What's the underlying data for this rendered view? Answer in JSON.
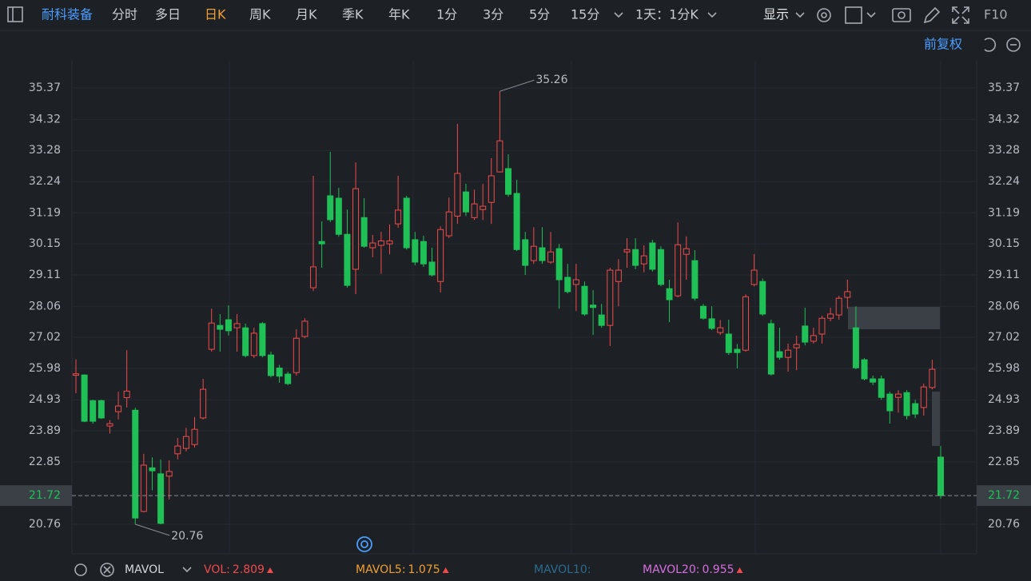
{
  "toolbar": {
    "stock_name": "耐科装备",
    "periods": [
      "分时",
      "多日",
      "日K",
      "周K",
      "月K",
      "季K",
      "年K",
      "1分",
      "3分",
      "5分",
      "15分"
    ],
    "active_period": 2,
    "interval": "1天：1分K",
    "display": "显示",
    "f10": "F10"
  },
  "adjust_label": "前复权",
  "chart_data": {
    "type": "candlestick",
    "open": [
      25.75,
      25.76,
      24.9,
      24.9,
      24.05,
      24.53,
      25.0,
      24.58,
      21.19,
      22.65,
      22.45,
      22.37,
      23.12,
      23.3,
      23.43,
      24.32,
      26.62,
      27.42,
      27.61,
      27.34,
      27.34,
      26.41,
      27.48,
      26.43,
      25.99,
      25.79,
      25.84,
      27.05,
      28.68,
      30.23,
      31.76,
      31.68,
      30.47,
      29.3,
      31.03,
      30.02,
      30.1,
      30.15,
      30.82,
      31.68,
      30.29,
      30.23,
      29.54,
      28.89,
      30.42,
      31.08,
      31.89,
      31.03,
      31.3,
      31.54,
      32.56,
      32.67,
      31.84,
      30.29,
      29.59,
      30.02,
      29.54,
      29.99,
      29.03,
      28.79,
      28.73,
      28.1,
      27.77,
      27.42,
      28.89,
      29.88,
      29.96,
      29.48,
      30.18,
      29.96,
      28.65,
      28.41,
      29.8,
      29.59,
      28.06,
      27.64,
      27.18,
      27.13,
      26.62,
      26.59,
      28.79,
      28.89,
      27.48,
      26.54,
      26.35,
      26.67,
      27.4,
      26.89,
      27.13,
      27.66,
      27.77,
      28.36,
      27.34,
      26.27,
      25.63,
      25.63,
      25.12,
      25.01,
      25.17,
      24.8,
      24.67,
      25.34,
      23.01
    ],
    "high": [
      26.28,
      25.78,
      24.93,
      24.93,
      24.25,
      25.2,
      26.59,
      24.66,
      23.12,
      23.0,
      22.93,
      22.9,
      23.65,
      23.99,
      24.35,
      25.63,
      27.98,
      27.8,
      28.09,
      27.8,
      27.48,
      27.34,
      27.53,
      26.54,
      26.1,
      25.87,
      27.29,
      27.66,
      32.43,
      30.9,
      33.23,
      32.03,
      31.3,
      32.88,
      31.68,
      30.45,
      30.55,
      30.8,
      32.43,
      31.76,
      30.55,
      30.42,
      30.02,
      30.74,
      31.7,
      34.17,
      32.16,
      31.97,
      32.16,
      33.02,
      35.26,
      33.15,
      32.3,
      30.55,
      30.71,
      30.71,
      30.55,
      30.15,
      29.48,
      29.48,
      28.89,
      28.6,
      28.14,
      29.35,
      29.64,
      30.34,
      30.34,
      30.1,
      30.29,
      30.07,
      28.95,
      30.87,
      30.4,
      29.94,
      28.14,
      28.06,
      27.6,
      27.61,
      26.8,
      28.46,
      29.81,
      28.99,
      27.61,
      27.34,
      26.81,
      27.08,
      28.01,
      27.34,
      27.74,
      28.01,
      28.41,
      28.95,
      28.06,
      26.32,
      25.74,
      25.74,
      25.2,
      25.25,
      25.25,
      24.93,
      25.47,
      26.27,
      23.38
    ],
    "low": [
      25.15,
      24.18,
      24.13,
      24.29,
      23.8,
      24.27,
      24.67,
      20.76,
      21.16,
      21.9,
      20.76,
      21.59,
      22.93,
      23.2,
      23.33,
      24.27,
      26.54,
      26.54,
      27.08,
      26.54,
      26.35,
      26.33,
      26.35,
      25.68,
      25.5,
      25.42,
      25.74,
      26.99,
      28.57,
      29.35,
      30.88,
      30.39,
      28.68,
      28.47,
      30.02,
      29.7,
      29.15,
      29.8,
      30.69,
      29.96,
      29.43,
      29.38,
      29.06,
      28.52,
      30.34,
      30.82,
      31.08,
      30.95,
      30.95,
      30.82,
      32.54,
      31.73,
      29.91,
      29.11,
      29.48,
      29.48,
      29.48,
      27.98,
      28.49,
      27.9,
      27.74,
      27.1,
      27.34,
      26.73,
      28.06,
      29.35,
      29.3,
      29.2,
      29.22,
      28.73,
      27.53,
      28.36,
      28.95,
      28.25,
      27.61,
      27.26,
      27.1,
      26.43,
      25.98,
      26.54,
      28.73,
      27.74,
      25.74,
      26.27,
      25.87,
      25.92,
      26.75,
      26.81,
      26.81,
      27.56,
      27.61,
      27.98,
      25.95,
      25.58,
      25.42,
      24.93,
      24.13,
      24.5,
      24.27,
      24.32,
      24.4,
      25.28,
      21.62
    ],
    "close": [
      25.8,
      24.21,
      24.21,
      24.32,
      24.13,
      24.72,
      25.22,
      20.97,
      22.74,
      22.55,
      20.79,
      22.53,
      23.38,
      23.7,
      23.94,
      25.28,
      27.5,
      27.29,
      27.24,
      27.48,
      26.41,
      27.16,
      26.41,
      25.74,
      25.72,
      25.47,
      26.99,
      27.56,
      29.38,
      30.15,
      30.96,
      30.47,
      28.76,
      32.0,
      30.07,
      30.18,
      30.25,
      30.25,
      31.28,
      30.02,
      29.54,
      29.48,
      29.11,
      30.63,
      31.22,
      32.51,
      31.22,
      31.49,
      31.41,
      32.43,
      33.6,
      31.81,
      29.96,
      29.43,
      30.07,
      29.59,
      29.88,
      28.95,
      28.55,
      28.95,
      27.8,
      28.02,
      27.42,
      29.27,
      29.27,
      29.96,
      29.43,
      29.75,
      29.3,
      28.79,
      28.28,
      30.12,
      29.99,
      28.33,
      27.66,
      27.32,
      27.34,
      26.51,
      26.51,
      28.38,
      29.27,
      27.8,
      25.79,
      26.35,
      26.59,
      26.78,
      26.86,
      27.08,
      27.66,
      27.8,
      28.33,
      28.55,
      26.0,
      25.63,
      25.52,
      25.01,
      24.56,
      25.12,
      24.4,
      24.45,
      25.36,
      25.95,
      21.72
    ],
    "up_color": "#f04b4b",
    "down_color": "#1fc157",
    "ylim": [
      19.77,
      36.31
    ],
    "yticks": [
      35.37,
      34.32,
      33.28,
      32.24,
      31.19,
      30.15,
      29.11,
      28.06,
      27.02,
      25.98,
      24.93,
      23.89,
      22.85,
      20.76
    ],
    "grid": true,
    "max_label": 35.26,
    "min_label": 20.76,
    "last_price": 21.72
  },
  "indicator": {
    "name": "MAVOL",
    "items": [
      {
        "name": "VOL:",
        "value": 2.809,
        "color": "#f04b4b"
      },
      {
        "name": "MAVOL5:",
        "value": 1.075,
        "color": "#f0a030"
      },
      {
        "name": "MAVOL10:",
        "color": "#2b6b8f"
      },
      {
        "name": "MAVOL20:",
        "value": 0.955,
        "color": "#d86ee0"
      }
    ]
  }
}
